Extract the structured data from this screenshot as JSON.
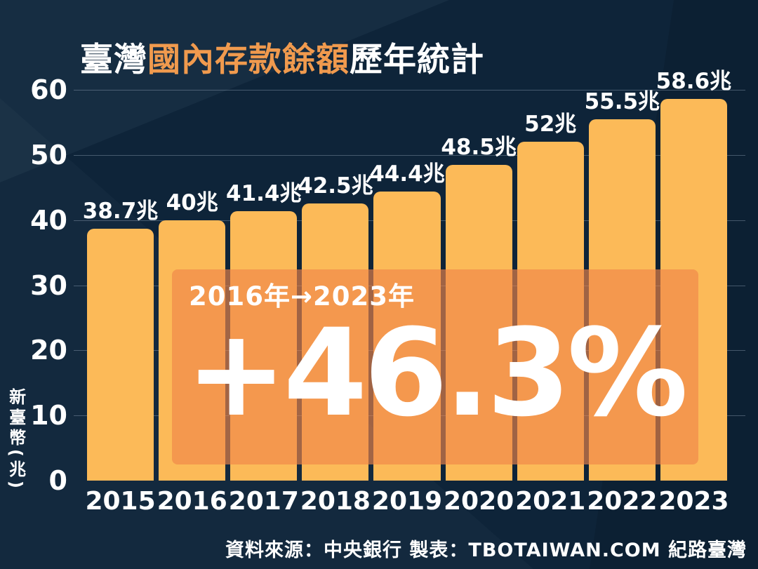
{
  "title": {
    "prefix": "臺灣",
    "highlight": "國內存款餘額",
    "suffix": "歷年統計"
  },
  "y_axis": {
    "unit_label": "新臺幣(兆)",
    "ticks": [
      0,
      10,
      20,
      30,
      40,
      50,
      60
    ]
  },
  "overlay": {
    "period": "2016年→2023年",
    "change": "+46.3%"
  },
  "footer": {
    "credit": "資料來源：中央銀行 製表：TBOTAIWAN.COM 紀路臺灣"
  },
  "colors": {
    "background": "#0E2439",
    "bar": "#FCBA58",
    "overlay": "rgba(239,134,73,0.65)",
    "title_highlight": "#F09A4E",
    "gridline": "rgba(200,215,235,0.30)",
    "text": "#FFFFFF"
  },
  "chart_data": {
    "type": "bar",
    "title": "臺灣國內存款餘額歷年統計",
    "categories": [
      "2015",
      "2016",
      "2017",
      "2018",
      "2019",
      "2020",
      "2021",
      "2022",
      "2023"
    ],
    "values": [
      38.7,
      40,
      41.4,
      42.5,
      44.4,
      48.5,
      52,
      55.5,
      58.6
    ],
    "bar_labels": [
      "38.7兆",
      "40兆",
      "41.4兆",
      "42.5兆",
      "44.4兆",
      "48.5兆",
      "52兆",
      "55.5兆",
      "58.6兆"
    ],
    "xlabel": "",
    "ylabel": "新臺幣(兆)",
    "ylim": [
      0,
      60
    ],
    "yticks": [
      0,
      10,
      20,
      30,
      40,
      50,
      60
    ],
    "grid": true,
    "legend": false,
    "annotation": {
      "period": "2016年→2023年",
      "growth": "+46.3%",
      "covers_x_range": [
        "2016",
        "2023"
      ]
    }
  }
}
